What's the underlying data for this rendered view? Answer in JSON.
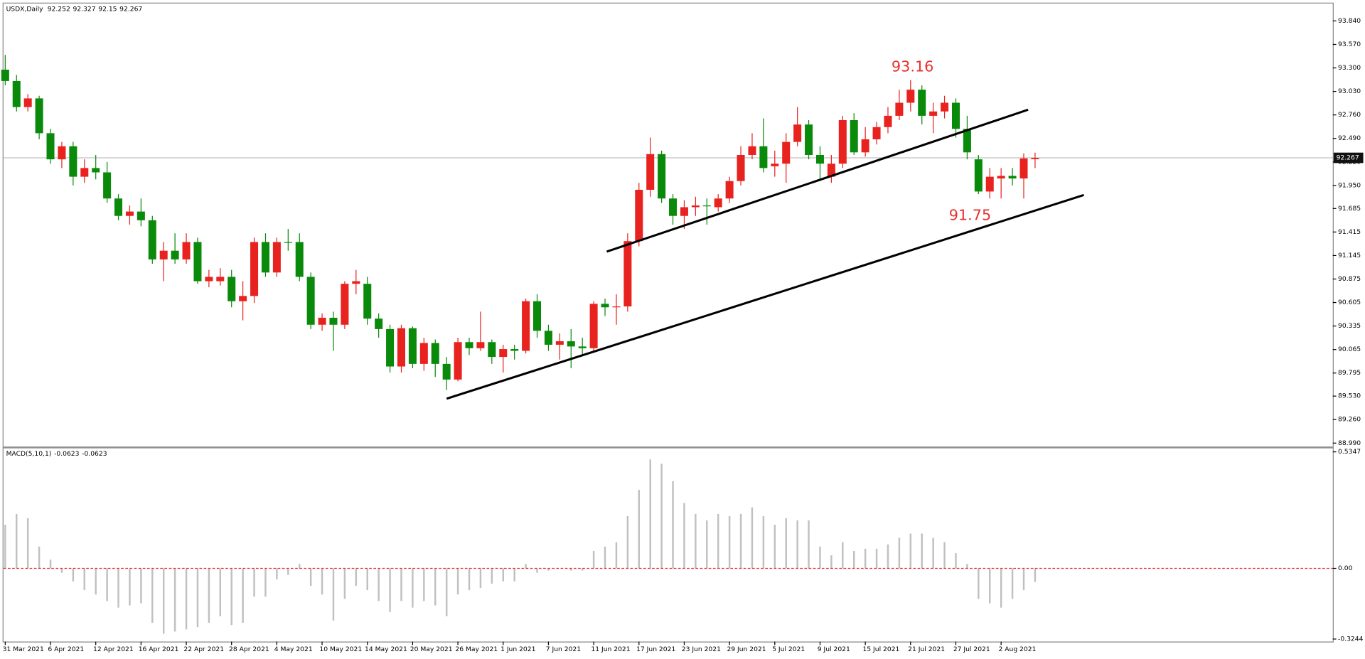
{
  "chart_data": [
    {
      "type": "candlestick",
      "symbol": "USDX,Daily",
      "categories": [
        "31 Mar 2021",
        null,
        null,
        null,
        "6 Apr 2021",
        null,
        null,
        null,
        "12 Apr 2021",
        null,
        null,
        null,
        "16 Apr 2021",
        null,
        null,
        null,
        "22 Apr 2021",
        null,
        null,
        null,
        "28 Apr 2021",
        null,
        null,
        null,
        "4 May 2021",
        null,
        null,
        null,
        "10 May 2021",
        null,
        null,
        null,
        "14 May 2021",
        null,
        null,
        null,
        "20 May 2021",
        null,
        null,
        null,
        "26 May 2021",
        null,
        null,
        null,
        "1 Jun 2021",
        null,
        null,
        null,
        "7 Jun 2021",
        null,
        null,
        null,
        "11 Jun 2021",
        null,
        null,
        null,
        "17 Jun 2021",
        null,
        null,
        null,
        "23 Jun 2021",
        null,
        null,
        null,
        "29 Jun 2021",
        null,
        null,
        null,
        "5 Jul 2021",
        null,
        null,
        null,
        "9 Jul 2021",
        null,
        null,
        null,
        "15 Jul 2021",
        null,
        null,
        null,
        "21 Jul 2021",
        null,
        null,
        null,
        "27 Jul 2021",
        null,
        null,
        null,
        "2 Aug 2021",
        null,
        null,
        null
      ],
      "open": [
        93.28,
        93.15,
        92.85,
        92.95,
        92.55,
        92.25,
        92.4,
        92.05,
        92.15,
        92.1,
        91.8,
        91.6,
        91.65,
        91.55,
        91.1,
        91.2,
        91.1,
        91.3,
        90.85,
        90.85,
        90.9,
        90.62,
        90.68,
        91.3,
        90.95,
        91.3,
        91.3,
        90.9,
        90.35,
        90.43,
        90.35,
        90.82,
        90.82,
        90.42,
        90.3,
        89.87,
        90.31,
        89.9,
        90.14,
        89.9,
        89.72,
        90.15,
        90.08,
        90.15,
        89.98,
        90.07,
        90.05,
        90.62,
        90.28,
        90.12,
        90.16,
        90.1,
        90.08,
        90.59,
        90.55,
        90.56,
        91.31,
        91.9,
        92.31,
        91.8,
        91.6,
        91.7,
        91.72,
        91.7,
        91.8,
        92.0,
        92.3,
        92.4,
        92.17,
        92.2,
        92.45,
        92.65,
        92.3,
        92.05,
        92.2,
        92.7,
        92.33,
        92.48,
        92.62,
        92.75,
        92.9,
        93.05,
        92.75,
        92.8,
        92.9,
        92.6,
        92.25,
        91.88,
        92.03,
        92.06,
        92.03,
        92.252
      ],
      "high": [
        93.45,
        93.22,
        93.0,
        92.98,
        92.6,
        92.45,
        92.45,
        92.25,
        92.3,
        92.22,
        91.85,
        91.72,
        91.8,
        91.6,
        91.3,
        91.4,
        91.4,
        91.35,
        90.98,
        91.0,
        90.98,
        90.85,
        91.35,
        91.4,
        91.35,
        91.45,
        91.4,
        90.95,
        90.48,
        90.5,
        90.85,
        90.98,
        90.9,
        90.48,
        90.35,
        90.35,
        90.33,
        90.2,
        90.18,
        89.98,
        90.2,
        90.2,
        90.5,
        90.18,
        90.12,
        90.12,
        90.65,
        90.7,
        90.35,
        90.25,
        90.3,
        90.2,
        90.62,
        90.65,
        90.7,
        91.4,
        91.98,
        92.5,
        92.35,
        91.85,
        91.78,
        91.82,
        91.8,
        91.85,
        92.05,
        92.4,
        92.55,
        92.72,
        92.35,
        92.55,
        92.85,
        92.7,
        92.4,
        92.3,
        92.75,
        92.78,
        92.62,
        92.68,
        92.85,
        93.05,
        93.16,
        93.1,
        92.9,
        92.98,
        92.95,
        92.75,
        92.3,
        92.15,
        92.15,
        92.15,
        92.32,
        92.327
      ],
      "low": [
        93.1,
        92.8,
        92.8,
        92.48,
        92.2,
        92.15,
        91.95,
        91.98,
        92.02,
        91.75,
        91.55,
        91.5,
        91.48,
        91.05,
        90.85,
        91.05,
        91.05,
        90.82,
        90.78,
        90.8,
        90.55,
        90.4,
        90.6,
        90.9,
        90.9,
        91.2,
        90.85,
        90.3,
        90.28,
        90.05,
        90.3,
        90.7,
        90.35,
        90.2,
        89.8,
        89.8,
        89.85,
        89.82,
        89.75,
        89.6,
        89.7,
        90.0,
        90.05,
        89.9,
        89.8,
        89.95,
        90.02,
        90.2,
        90.05,
        89.95,
        89.85,
        90.0,
        90.05,
        90.45,
        90.35,
        90.5,
        91.25,
        91.82,
        91.75,
        91.5,
        91.45,
        91.6,
        91.5,
        91.65,
        91.75,
        91.95,
        92.25,
        92.1,
        92.05,
        91.98,
        92.4,
        92.25,
        92.0,
        91.98,
        92.15,
        92.3,
        92.28,
        92.42,
        92.55,
        92.7,
        92.8,
        92.65,
        92.55,
        92.72,
        92.5,
        92.25,
        91.85,
        91.8,
        91.8,
        91.95,
        91.8,
        92.15
      ],
      "close": [
        93.15,
        92.85,
        92.95,
        92.55,
        92.25,
        92.4,
        92.05,
        92.15,
        92.1,
        91.8,
        91.6,
        91.65,
        91.55,
        91.1,
        91.2,
        91.1,
        91.3,
        90.85,
        90.9,
        90.9,
        90.62,
        90.68,
        91.3,
        90.95,
        91.3,
        91.29,
        90.9,
        90.35,
        90.43,
        90.35,
        90.82,
        90.85,
        90.42,
        90.3,
        89.87,
        90.31,
        89.9,
        90.14,
        89.9,
        89.72,
        90.15,
        90.08,
        90.15,
        89.98,
        90.07,
        90.05,
        90.62,
        90.28,
        90.12,
        90.16,
        90.1,
        90.08,
        90.59,
        90.55,
        90.56,
        91.31,
        91.9,
        92.31,
        91.8,
        91.6,
        91.7,
        91.72,
        91.71,
        91.8,
        92.0,
        92.3,
        92.4,
        92.15,
        92.2,
        92.45,
        92.65,
        92.3,
        92.2,
        92.2,
        92.7,
        92.33,
        92.48,
        92.62,
        92.75,
        92.9,
        93.05,
        92.75,
        92.8,
        92.9,
        92.6,
        92.33,
        91.88,
        92.05,
        92.06,
        92.03,
        92.26,
        92.267
      ],
      "up_color": "#e8231f",
      "down_color": "#0a8a0a",
      "ylim": [
        88.95,
        94.03
      ],
      "yticks": [
        {
          "value": 93.84,
          "label": "93.840"
        },
        {
          "value": 93.57,
          "label": "93.570"
        },
        {
          "value": 93.3,
          "label": "93.300"
        },
        {
          "value": 93.03,
          "label": "93.030"
        },
        {
          "value": 92.76,
          "label": "92.760"
        },
        {
          "value": 92.49,
          "label": "92.490"
        },
        {
          "value": 92.22,
          "label": "92.220"
        },
        {
          "value": 91.95,
          "label": "91.950"
        },
        {
          "value": 91.685,
          "label": "91.685"
        },
        {
          "value": 91.415,
          "label": "91.415"
        },
        {
          "value": 91.145,
          "label": "91.145"
        },
        {
          "value": 90.875,
          "label": "90.875"
        },
        {
          "value": 90.605,
          "label": "90.605"
        },
        {
          "value": 90.335,
          "label": "90.335"
        },
        {
          "value": 90.065,
          "label": "90.065"
        },
        {
          "value": 89.795,
          "label": "89.795"
        },
        {
          "value": 89.53,
          "label": "89.530"
        },
        {
          "value": 89.26,
          "label": "89.260"
        },
        {
          "value": 88.99,
          "label": "88.990"
        }
      ],
      "last_price": 92.267,
      "annotations": [
        93.16,
        91.75
      ],
      "annotation_color": "#e8312f"
    },
    {
      "type": "bar",
      "title": "MACD(5,10,1)",
      "header_values": [
        -0.0623,
        -0.0623
      ],
      "values": [
        0.2,
        0.25,
        0.23,
        0.1,
        0.04,
        -0.02,
        -0.06,
        -0.1,
        -0.12,
        -0.15,
        -0.18,
        -0.17,
        -0.16,
        -0.25,
        -0.3,
        -0.29,
        -0.28,
        -0.27,
        -0.25,
        -0.22,
        -0.26,
        -0.25,
        -0.13,
        -0.13,
        -0.05,
        -0.03,
        0.02,
        -0.08,
        -0.12,
        -0.24,
        -0.14,
        -0.08,
        -0.1,
        -0.15,
        -0.2,
        -0.15,
        -0.18,
        -0.15,
        -0.17,
        -0.22,
        -0.12,
        -0.1,
        -0.09,
        -0.07,
        -0.06,
        -0.06,
        0.02,
        -0.02,
        -0.01,
        0.0,
        -0.01,
        -0.01,
        0.08,
        0.1,
        0.12,
        0.24,
        0.36,
        0.5,
        0.48,
        0.4,
        0.3,
        0.25,
        0.22,
        0.25,
        0.24,
        0.25,
        0.28,
        0.24,
        0.2,
        0.23,
        0.22,
        0.22,
        0.1,
        0.06,
        0.12,
        0.08,
        0.09,
        0.09,
        0.11,
        0.14,
        0.16,
        0.16,
        0.14,
        0.12,
        0.07,
        0.02,
        -0.14,
        -0.16,
        -0.18,
        -0.14,
        -0.1,
        -0.0623
      ],
      "color": "#c0c0c0",
      "zero_line_color": "#e03030",
      "ylim": [
        -0.336,
        0.551
      ],
      "yticks": [
        0.5347,
        {
          "value": 0,
          "label": "0.00"
        },
        -0.3244
      ]
    }
  ]
}
